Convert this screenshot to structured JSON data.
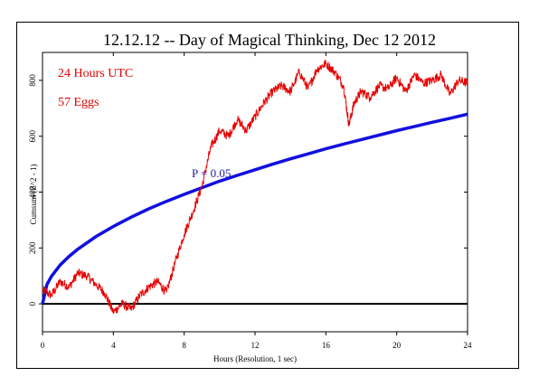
{
  "chart_data": {
    "type": "line",
    "title": "12.12.12 --  Day of Magical Thinking, Dec 12 2012",
    "xlabel": "Hours (Resolution, 1 sec)",
    "ylabel": "Cumsum (Z^2 - 1)",
    "xlim": [
      0,
      24
    ],
    "ylim": [
      -100,
      900
    ],
    "x_ticks": [
      "0",
      "4",
      "8",
      "12",
      "16",
      "20",
      "24"
    ],
    "y_ticks": [
      "0",
      "200",
      "400",
      "600",
      "800"
    ],
    "annotations": {
      "duration": "24 Hours UTC",
      "eggs": "57 Eggs",
      "significance": "P = 0.05"
    },
    "colors": {
      "data": "#e60000",
      "envelope": "#1010e0",
      "baseline": "#000000"
    },
    "series": [
      {
        "color": "#e60000",
        "x": [
          0,
          0.5,
          1,
          1.5,
          2,
          2.5,
          3,
          3.5,
          4,
          4.5,
          5,
          5.5,
          6,
          6.5,
          7,
          7.5,
          8,
          8.5,
          9,
          9.5,
          10,
          10.5,
          11,
          11.5,
          12,
          12.5,
          13,
          13.5,
          14,
          14.5,
          15,
          15.5,
          16,
          16.5,
          17,
          17.3,
          17.6,
          18,
          18.5,
          19,
          19.5,
          20,
          20.5,
          21,
          21.5,
          22,
          22.5,
          23,
          23.5,
          24
        ],
        "y": [
          50,
          30,
          80,
          60,
          110,
          100,
          70,
          40,
          -30,
          0,
          -20,
          30,
          60,
          80,
          40,
          150,
          250,
          330,
          420,
          560,
          620,
          600,
          660,
          620,
          670,
          720,
          760,
          780,
          760,
          830,
          770,
          840,
          860,
          830,
          780,
          640,
          720,
          760,
          740,
          780,
          770,
          810,
          760,
          820,
          790,
          800,
          820,
          750,
          800,
          790
        ]
      },
      {
        "color": "#1010e0",
        "x": [
          0,
          0.25,
          0.5,
          1,
          1.5,
          2,
          3,
          4,
          5,
          6,
          7,
          8,
          9,
          10,
          11,
          12,
          13,
          14,
          15,
          16,
          17,
          18,
          19,
          20,
          21,
          22,
          23,
          24
        ],
        "y": [
          0,
          69,
          98,
          139,
          170,
          196,
          240,
          277,
          310,
          340,
          367,
          392,
          416,
          439,
          460,
          480,
          500,
          519,
          537,
          555,
          572,
          588,
          604,
          620,
          635,
          650,
          664,
          679
        ]
      }
    ]
  }
}
